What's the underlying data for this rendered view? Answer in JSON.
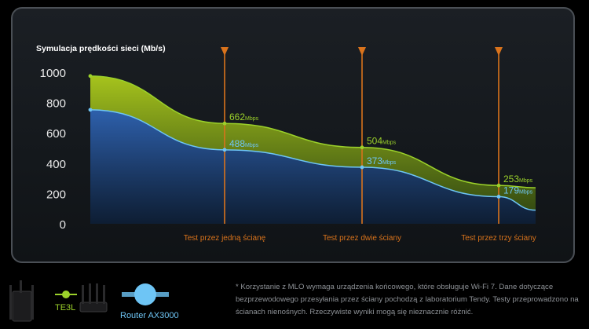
{
  "chart_data": {
    "type": "area",
    "title": "Symulacja prędkości sieci (Mb/s)",
    "xlabel": "",
    "ylabel": "",
    "ylim": [
      0,
      1000
    ],
    "yticks": [
      "1000",
      "800",
      "600",
      "400",
      "200",
      "0"
    ],
    "grid": false,
    "legend": "bottom-left",
    "markers": [
      {
        "label": "Test przez jedną ścianę"
      },
      {
        "label": "Test przez dwie ściany"
      },
      {
        "label": "Test przez trzy ściany"
      }
    ],
    "series": [
      {
        "name": "TE3L",
        "color": "#9bd12a",
        "values": [
          975,
          662,
          504,
          253,
          238
        ],
        "labels": [
          null,
          "662",
          "504",
          "253",
          null
        ]
      },
      {
        "name": "Router AX3000",
        "color": "#6ec5f5",
        "values": [
          752,
          488,
          373,
          179,
          90
        ],
        "labels": [
          null,
          "488",
          "373",
          "179",
          null
        ]
      }
    ],
    "unit_suffix": "Mbps",
    "colors": {
      "marker": "#d9731c",
      "axis_text": "#e8e8e8",
      "top_series": "#9bd12a",
      "bottom_series": "#6ec5f5"
    }
  },
  "legend": {
    "items": [
      {
        "label": "TE3L",
        "color": "#9bd12a"
      },
      {
        "label": "Router AX3000",
        "color": "#6ec5f5"
      }
    ]
  },
  "footnote": "* Korzystanie z MLO wymaga urządzenia końcowego, które obsługuje Wi-Fi 7. Dane dotyczące bezprzewodowego przesyłania przez ściany pochodzą z laboratorium Tendy. Testy przeprowadzono na ścianach nienośnych. Rzeczywiste wyniki mogą się nieznacznie różnić."
}
